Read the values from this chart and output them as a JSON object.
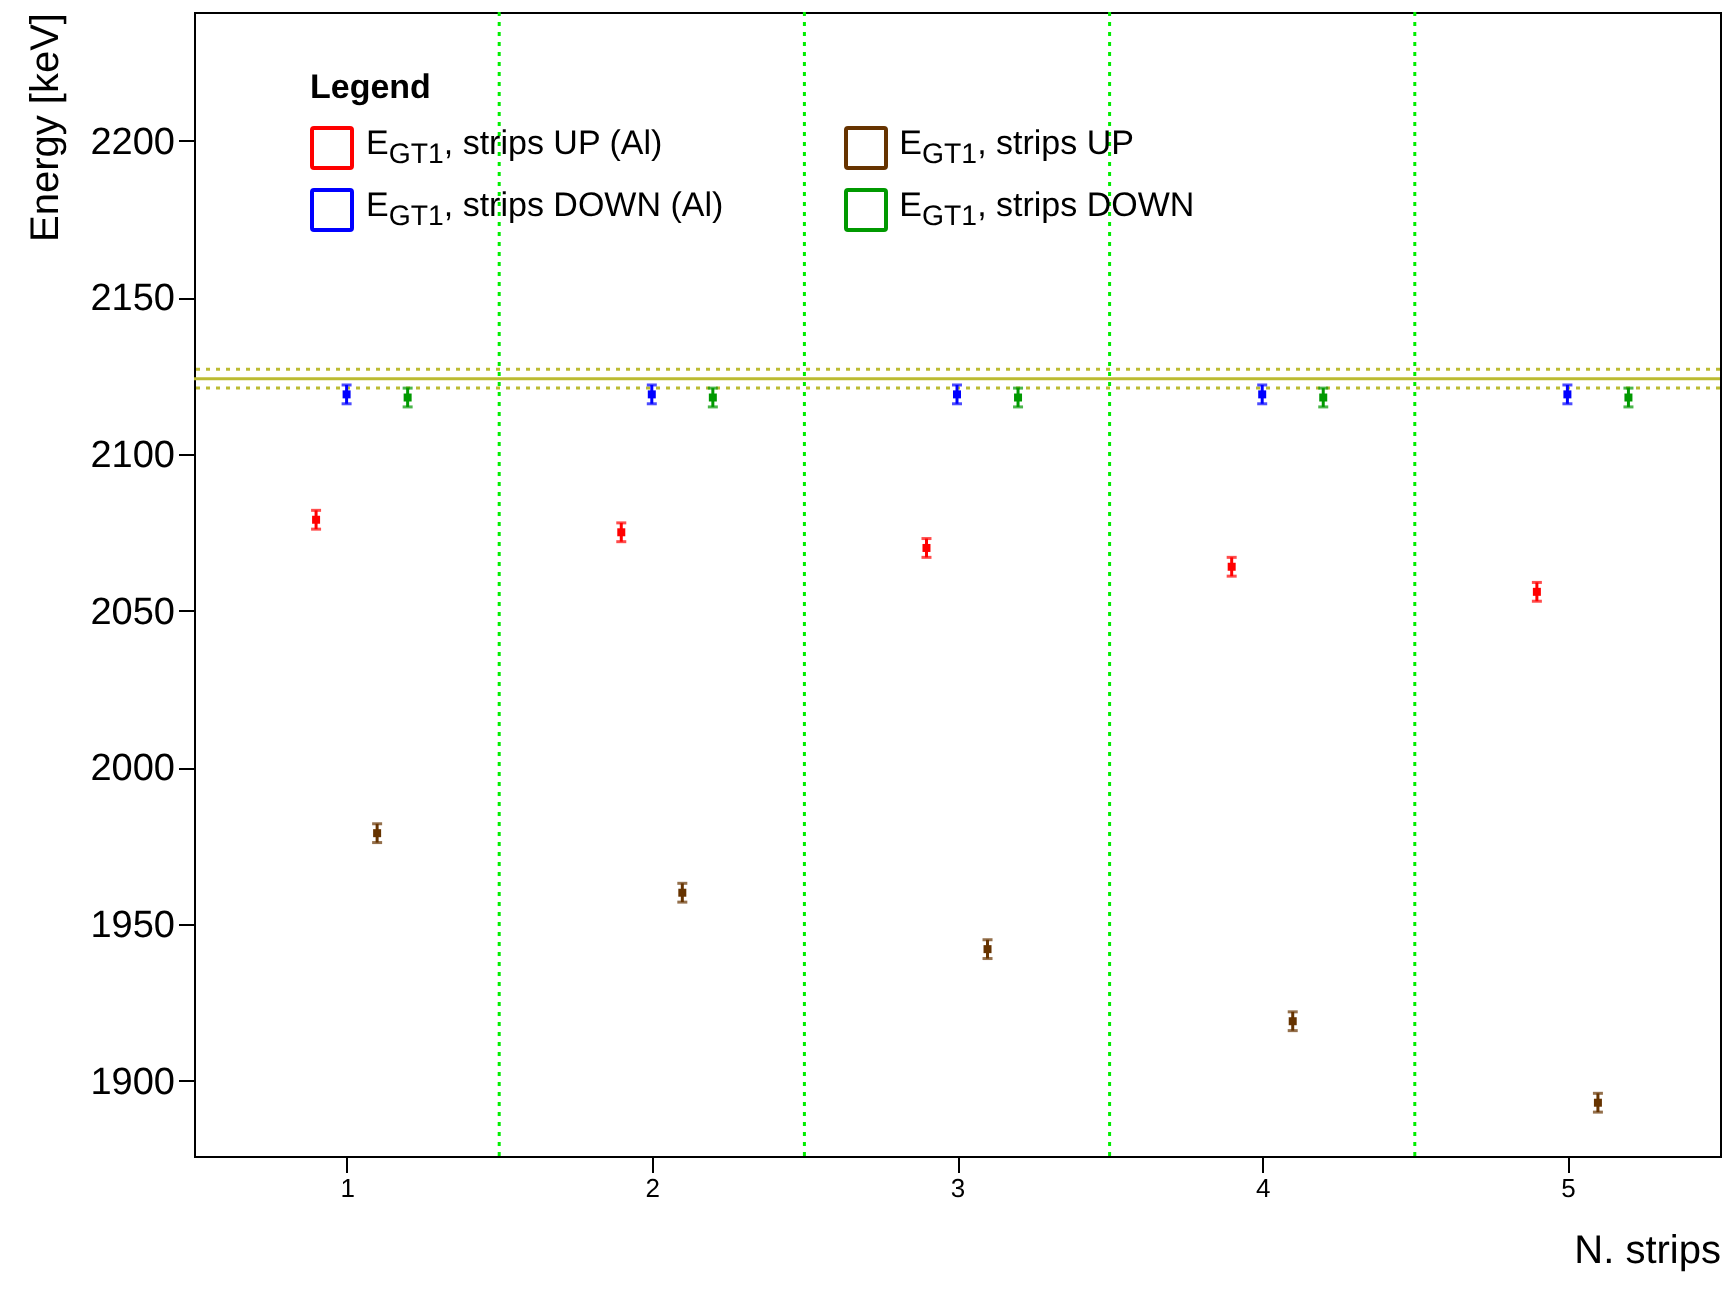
{
  "chart_data": {
    "type": "scatter",
    "xlabel": "N. strips",
    "ylabel": "Energy [keV]",
    "legend_title": "Legend",
    "legend": "top left",
    "grid": false,
    "marker": "square",
    "xlim": [
      0.5,
      5.5
    ],
    "xticks": [
      1,
      2,
      3,
      4,
      5
    ],
    "ylim": [
      1876,
      2241
    ],
    "yticks": [
      1900,
      1950,
      2000,
      2050,
      2100,
      2150,
      2200
    ],
    "series": [
      {
        "name": "E$_{GT1}$, strips UP (Al)",
        "color": "#ff0000",
        "x": [
          0.9,
          1.9,
          2.9,
          3.9,
          4.9
        ],
        "values": [
          2079,
          2075,
          2070,
          2064,
          2056
        ],
        "errors": [
          3,
          3,
          3,
          3,
          3
        ]
      },
      {
        "name": "E$_{GT1}$, strips DOWN (Al)",
        "color": "#0000ff",
        "x": [
          1,
          2,
          3,
          4,
          5
        ],
        "values": [
          2119,
          2119,
          2119,
          2119,
          2119
        ],
        "errors": [
          3,
          3,
          3,
          3,
          3
        ]
      },
      {
        "name": "E$_{GT1}$, strips UP",
        "color": "#663300",
        "x": [
          1.1,
          2.1,
          3.1,
          4.1,
          5.1
        ],
        "values": [
          1979,
          1960,
          1942,
          1919,
          1893
        ],
        "errors": [
          3,
          3,
          3,
          3,
          3
        ]
      },
      {
        "name": "E$_{GT1}$, strips DOWN",
        "color": "#009900",
        "x": [
          1.2,
          2.2,
          3.2,
          4.2,
          5.2
        ],
        "values": [
          2118,
          2118,
          2118,
          2118,
          2118
        ],
        "errors": [
          3,
          3,
          3,
          3,
          3
        ]
      }
    ],
    "ref_lines": [
      {
        "axis": "y",
        "value": 2124,
        "color": "#bbbb33",
        "line_style": "solid"
      },
      {
        "axis": "y",
        "value": 2127,
        "color": "#bbbb33",
        "line_style": "dotted"
      },
      {
        "axis": "y",
        "value": 2121,
        "color": "#bbbb33",
        "line_style": "dotted"
      },
      {
        "axis": "x",
        "value": 1.5,
        "color": "#00ee00",
        "line_style": "dotted"
      },
      {
        "axis": "x",
        "value": 2.5,
        "color": "#00ee00",
        "line_style": "dotted"
      },
      {
        "axis": "x",
        "value": 3.5,
        "color": "#00ee00",
        "line_style": "dotted"
      },
      {
        "axis": "x",
        "value": 4.5,
        "color": "#00ee00",
        "line_style": "dotted"
      }
    ]
  }
}
